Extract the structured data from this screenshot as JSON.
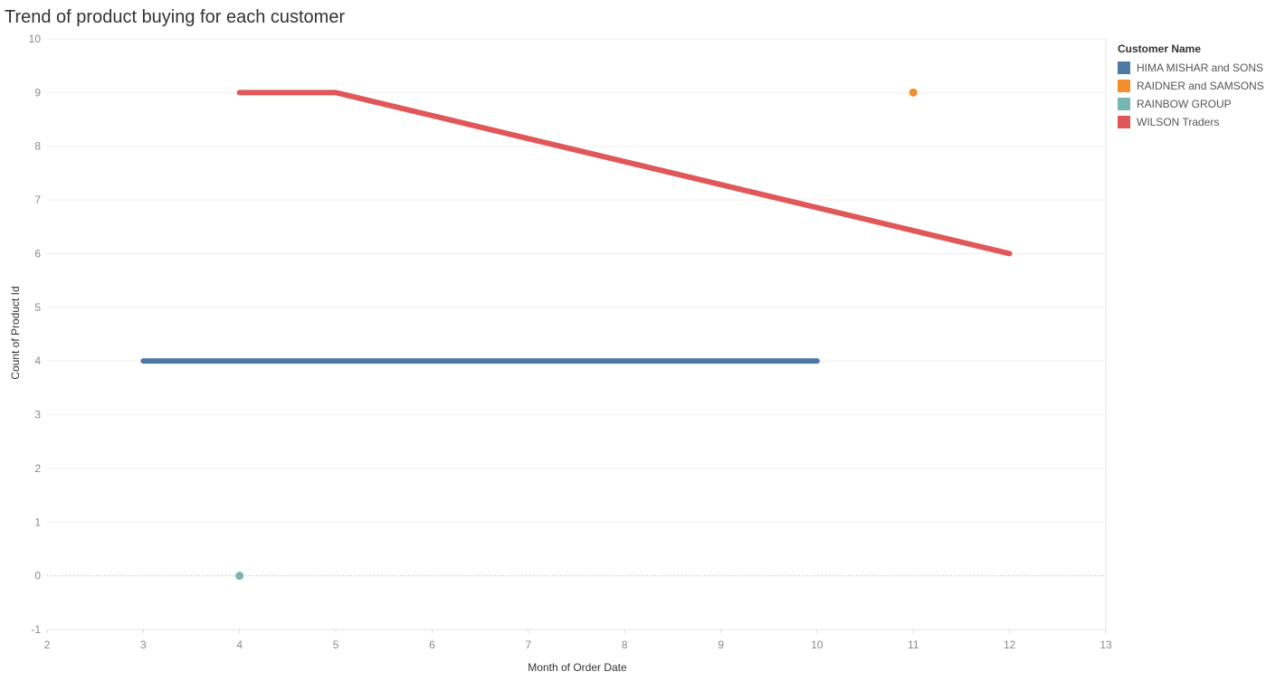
{
  "chart_data": {
    "type": "line",
    "title": "Trend of product buying for each customer",
    "xlabel": "Month of Order Date",
    "ylabel": "Count of Product Id",
    "xlim": [
      2,
      13
    ],
    "ylim": [
      -1,
      10
    ],
    "x_ticks": [
      2,
      3,
      4,
      5,
      6,
      7,
      8,
      9,
      10,
      11,
      12,
      13
    ],
    "y_ticks": [
      -1,
      0,
      1,
      2,
      3,
      4,
      5,
      6,
      7,
      8,
      9,
      10
    ],
    "grid": true,
    "legend_title": "Customer Name",
    "legend_position": "right",
    "series": [
      {
        "name": "HIMA MISHAR and SONS",
        "color": "#4e79a7",
        "points": [
          [
            3,
            4
          ],
          [
            10,
            4
          ]
        ]
      },
      {
        "name": "RAIDNER and SAMSONS",
        "color": "#f28e2b",
        "points": [
          [
            11,
            9
          ]
        ]
      },
      {
        "name": "RAINBOW GROUP",
        "color": "#76b7b2",
        "points": [
          [
            4,
            0
          ]
        ]
      },
      {
        "name": "WILSON Traders",
        "color": "#e15759",
        "points": [
          [
            4,
            9
          ],
          [
            5,
            9
          ],
          [
            12,
            6
          ]
        ]
      }
    ]
  }
}
